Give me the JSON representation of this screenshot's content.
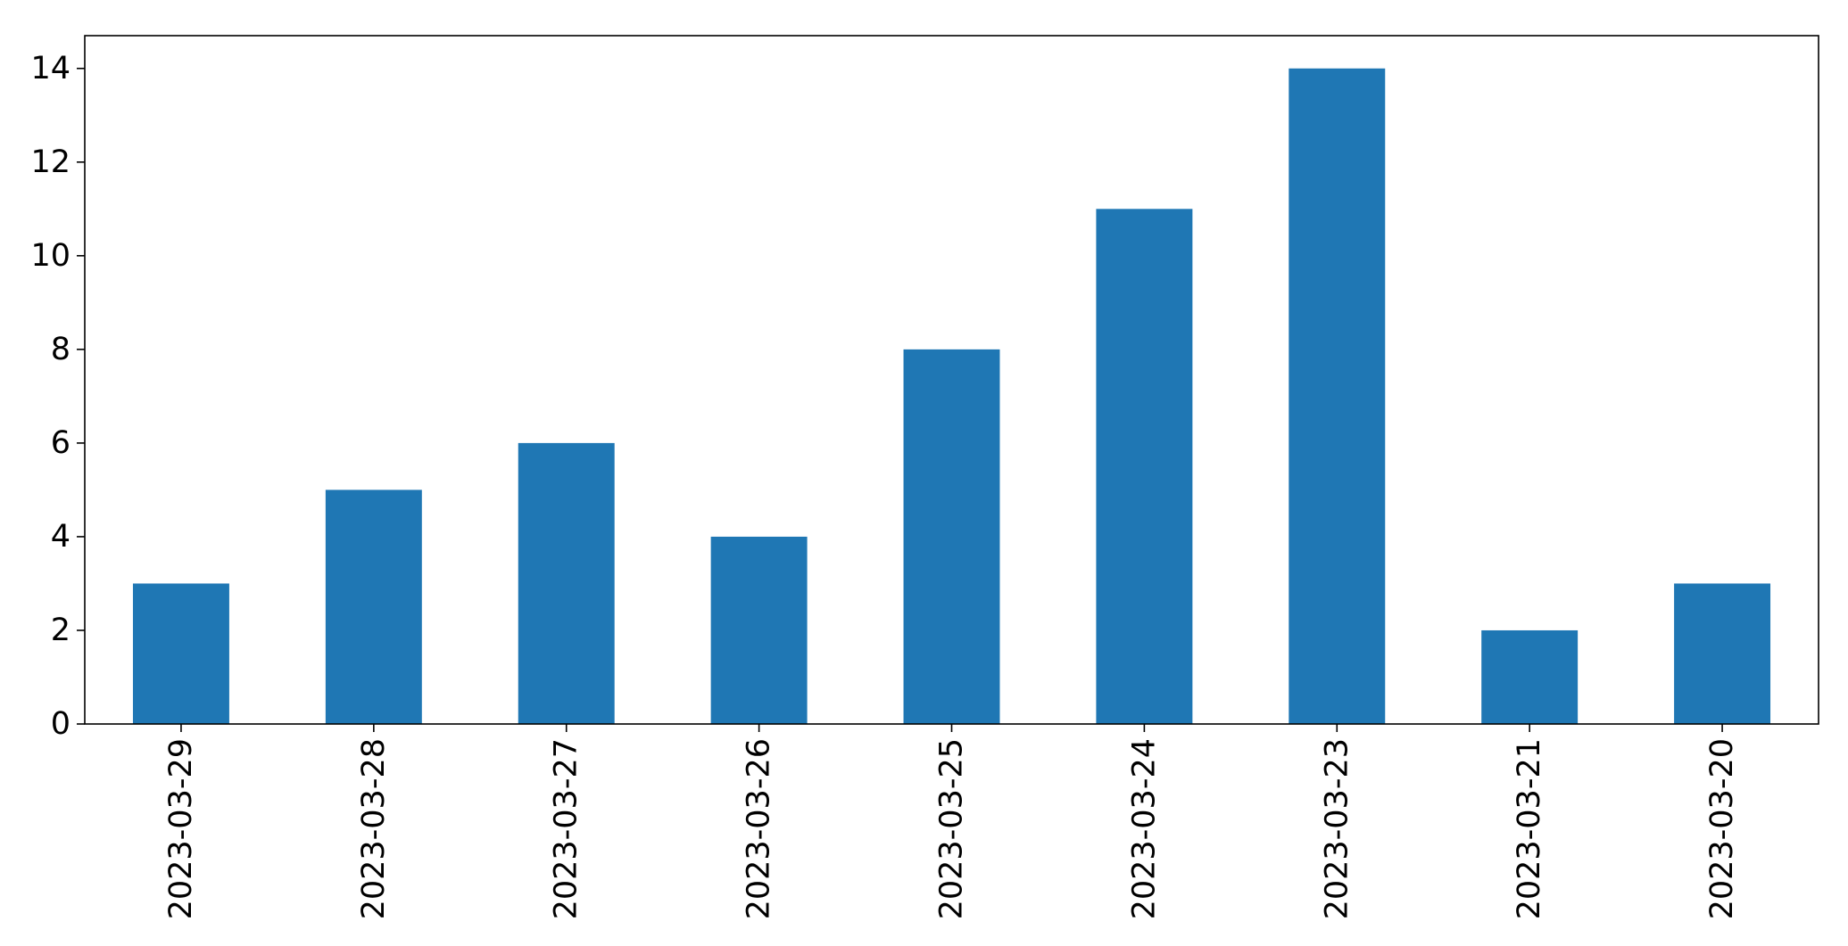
{
  "chart_data": {
    "type": "bar",
    "categories": [
      "2023-03-29",
      "2023-03-28",
      "2023-03-27",
      "2023-03-26",
      "2023-03-25",
      "2023-03-24",
      "2023-03-23",
      "2023-03-21",
      "2023-03-20"
    ],
    "values": [
      3,
      5,
      6,
      4,
      8,
      11,
      14,
      2,
      3
    ],
    "title": "",
    "xlabel": "",
    "ylabel": "",
    "ylim": [
      0,
      14.7
    ],
    "yticks": [
      0,
      2,
      4,
      6,
      8,
      10,
      12,
      14
    ],
    "bar_color": "#1f77b4",
    "grid": false,
    "legend": "none"
  }
}
